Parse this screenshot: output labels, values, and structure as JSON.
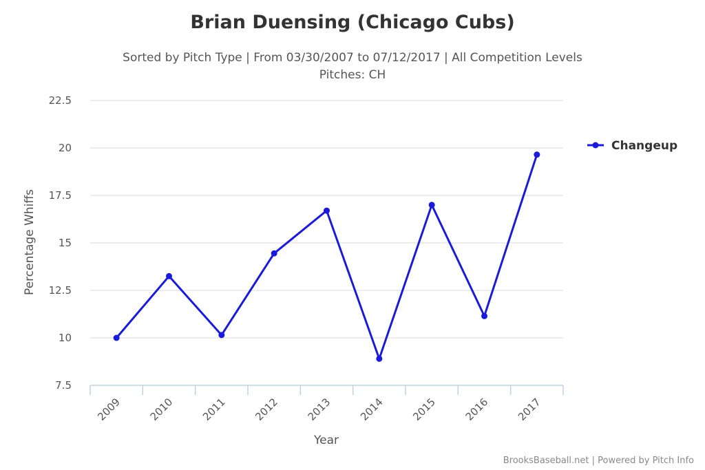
{
  "chart_data": {
    "type": "line",
    "title": "Brian Duensing (Chicago Cubs)",
    "subtitle_line1": "Sorted by Pitch Type | From 03/30/2007 to 07/12/2017 | All Competition Levels",
    "subtitle_line2": "Pitches: CH",
    "xlabel": "Year",
    "ylabel": "Percentage Whiffs",
    "categories": [
      "2009",
      "2010",
      "2011",
      "2012",
      "2013",
      "2014",
      "2015",
      "2016",
      "2017"
    ],
    "y_ticks": [
      "7.5",
      "10",
      "12.5",
      "15",
      "17.5",
      "20",
      "22.5"
    ],
    "ylim": [
      7.5,
      22.5
    ],
    "grid": true,
    "legend_position": "right",
    "series": [
      {
        "name": "Changeup",
        "color": "#1a1adb",
        "values": [
          10.0,
          13.25,
          10.15,
          14.45,
          16.7,
          8.9,
          17.0,
          11.15,
          19.65
        ]
      }
    ],
    "credit": "BrooksBaseball.net | Powered by Pitch Info"
  }
}
